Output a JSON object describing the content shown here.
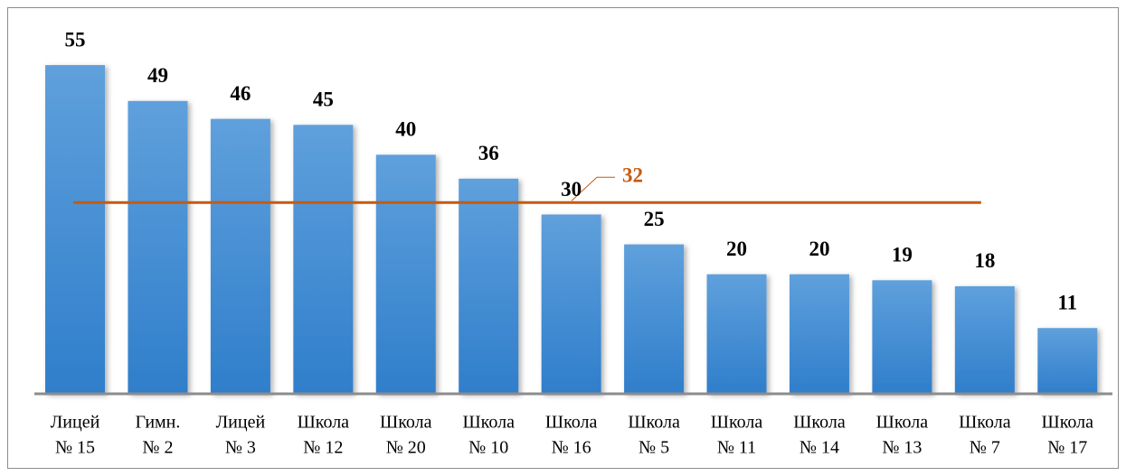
{
  "chart_data": {
    "type": "bar",
    "categories": [
      [
        "Лицей",
        "№ 15"
      ],
      [
        "Гимн.",
        "№ 2"
      ],
      [
        "Лицей",
        "№ 3"
      ],
      [
        "Школа",
        "№ 12"
      ],
      [
        "Школа",
        "№ 20"
      ],
      [
        "Школа",
        "№ 10"
      ],
      [
        "Школа",
        "№ 16"
      ],
      [
        "Школа",
        "№ 5"
      ],
      [
        "Школа",
        "№ 11"
      ],
      [
        "Школа",
        "№ 14"
      ],
      [
        "Школа",
        "№ 13"
      ],
      [
        "Школа",
        "№ 7"
      ],
      [
        "Школа",
        "№ 17"
      ]
    ],
    "values": [
      55,
      49,
      46,
      45,
      40,
      36,
      30,
      25,
      20,
      20,
      19,
      18,
      11
    ],
    "color": "#5b9bd5",
    "average": 32,
    "average_color": "#c55a11",
    "ylim": [
      0,
      60
    ]
  }
}
